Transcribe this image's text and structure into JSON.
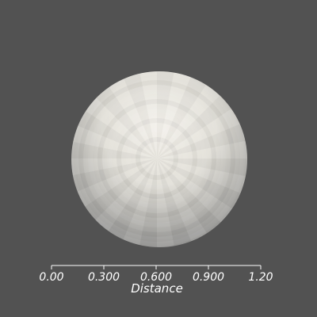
{
  "viewport": {
    "background_color": "#525252"
  },
  "object": {
    "type": "sphere",
    "icon_name": "sphere-mesh",
    "lit_color": "#efece5",
    "shadow_color": "#8f8f8e"
  },
  "scale_bar": {
    "title": "Distance",
    "ticks": [
      "0.00",
      "0.300",
      "0.600",
      "0.900",
      "1.20"
    ],
    "color": "#ffffff"
  }
}
